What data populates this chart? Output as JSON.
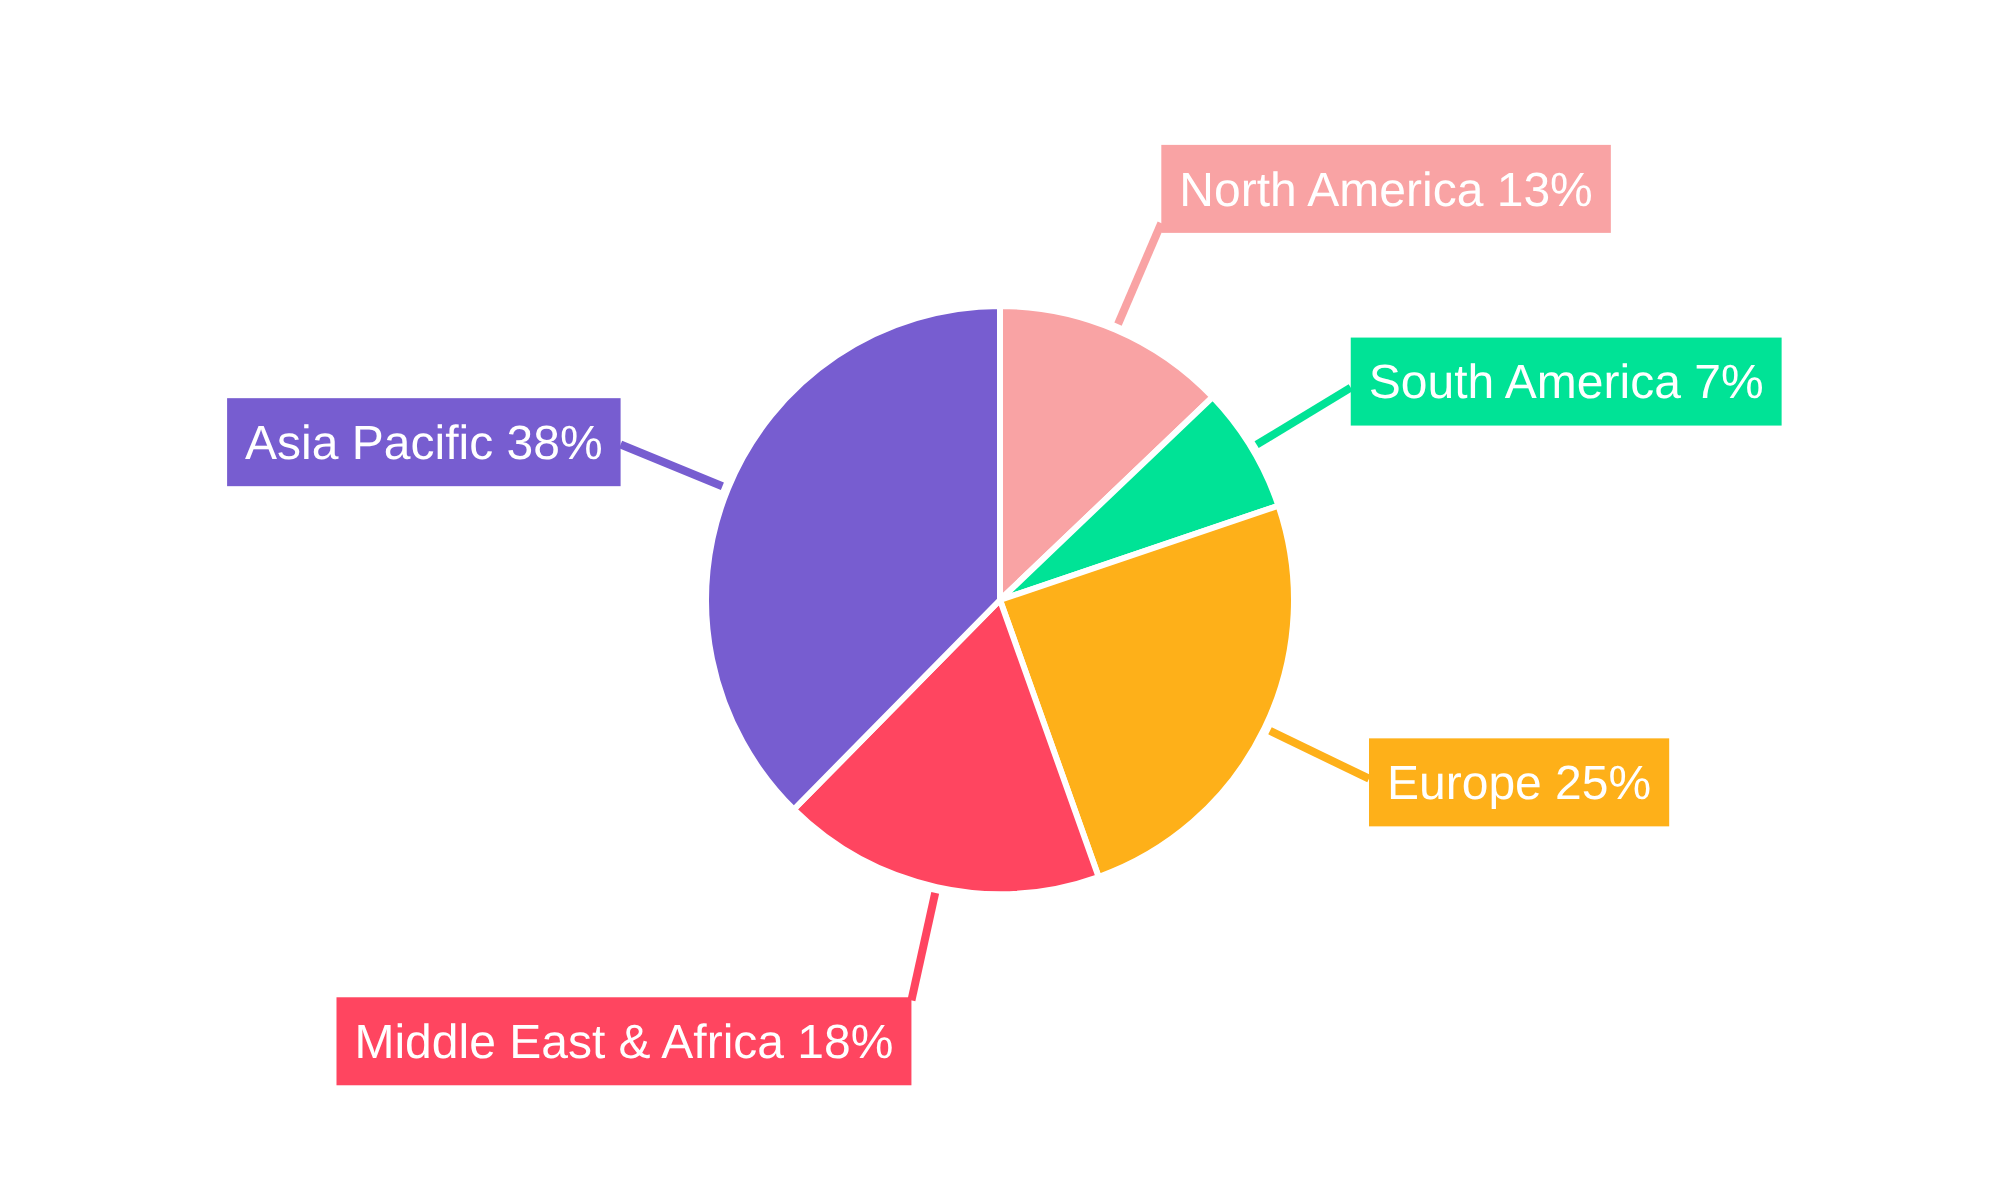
{
  "chart_data": {
    "type": "pie",
    "categories": [
      "North America",
      "South America",
      "Europe",
      "Middle East & Africa",
      "Asia Pacific"
    ],
    "values": [
      13,
      7,
      25,
      18,
      38
    ],
    "value_labels": [
      "13%",
      "7%",
      "25%",
      "18%",
      "38%"
    ],
    "colors": [
      "#f9a3a4",
      "#00e396",
      "#feb019",
      "#ff4560",
      "#775dd0"
    ]
  }
}
